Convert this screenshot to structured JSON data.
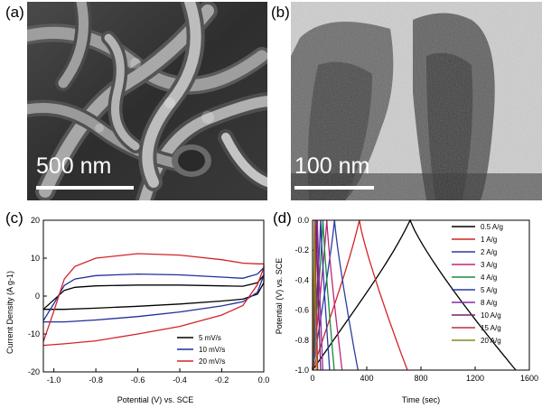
{
  "panels": {
    "a": {
      "label": "(a)",
      "scale_text": "500 nm"
    },
    "b": {
      "label": "(b)",
      "scale_text": "100 nm"
    },
    "c": {
      "label": "(c)"
    },
    "d": {
      "label": "(d)"
    }
  },
  "chart_data": [
    {
      "type": "line",
      "panel": "(c)",
      "title": "",
      "xlabel": "Potential (V) vs. SCE",
      "ylabel": "Current Density (A g-1)",
      "xlim": [
        -1.05,
        0.0
      ],
      "ylim": [
        -20,
        20
      ],
      "x_ticks": [
        "-1.0",
        "-0.8",
        "-0.6",
        "-0.4",
        "-0.2",
        "0.0"
      ],
      "x_tick_values": [
        -1.0,
        -0.8,
        -0.6,
        -0.4,
        -0.2,
        0.0
      ],
      "y_ticks": [
        "-20",
        "-10",
        "0",
        "10",
        "20"
      ],
      "y_tick_values": [
        -20,
        -10,
        0,
        10,
        20
      ],
      "legend_position": "bottom-right",
      "series": [
        {
          "name": "5 mV/s",
          "color": "#000000",
          "upper": [
            [
              -1.05,
              -3.5
            ],
            [
              -1.0,
              -1.0
            ],
            [
              -0.95,
              1.5
            ],
            [
              -0.9,
              2.3
            ],
            [
              -0.8,
              2.7
            ],
            [
              -0.6,
              2.9
            ],
            [
              -0.4,
              2.9
            ],
            [
              -0.2,
              2.7
            ],
            [
              -0.1,
              2.6
            ],
            [
              -0.03,
              3.5
            ],
            [
              0.0,
              5.5
            ]
          ],
          "lower": [
            [
              0.0,
              3.5
            ],
            [
              -0.03,
              0.5
            ],
            [
              -0.1,
              -0.8
            ],
            [
              -0.2,
              -1.3
            ],
            [
              -0.4,
              -2.1
            ],
            [
              -0.6,
              -2.7
            ],
            [
              -0.8,
              -3.2
            ],
            [
              -0.95,
              -3.5
            ],
            [
              -1.05,
              -3.5
            ]
          ]
        },
        {
          "name": "10 mV/s",
          "color": "#1f2f9a",
          "upper": [
            [
              -1.05,
              -6.5
            ],
            [
              -1.0,
              -2.0
            ],
            [
              -0.95,
              2.8
            ],
            [
              -0.9,
              4.5
            ],
            [
              -0.8,
              5.4
            ],
            [
              -0.6,
              5.8
            ],
            [
              -0.4,
              5.6
            ],
            [
              -0.2,
              5.0
            ],
            [
              -0.1,
              4.7
            ],
            [
              -0.03,
              5.8
            ],
            [
              0.0,
              7.5
            ]
          ],
          "lower": [
            [
              0.0,
              5.5
            ],
            [
              -0.03,
              1.0
            ],
            [
              -0.1,
              -1.5
            ],
            [
              -0.2,
              -2.6
            ],
            [
              -0.4,
              -4.2
            ],
            [
              -0.6,
              -5.4
            ],
            [
              -0.8,
              -6.3
            ],
            [
              -0.95,
              -6.8
            ],
            [
              -1.05,
              -6.8
            ]
          ]
        },
        {
          "name": "20 mV/s",
          "color": "#d2232a",
          "upper": [
            [
              -1.05,
              -12.0
            ],
            [
              -1.0,
              -4.0
            ],
            [
              -0.95,
              4.5
            ],
            [
              -0.9,
              7.8
            ],
            [
              -0.8,
              10.0
            ],
            [
              -0.6,
              11.2
            ],
            [
              -0.4,
              10.8
            ],
            [
              -0.2,
              9.6
            ],
            [
              -0.1,
              8.7
            ],
            [
              -0.03,
              8.5
            ],
            [
              0.0,
              8.5
            ]
          ],
          "lower": [
            [
              0.0,
              7.5
            ],
            [
              -0.03,
              3.0
            ],
            [
              -0.1,
              -2.5
            ],
            [
              -0.2,
              -5.0
            ],
            [
              -0.4,
              -8.0
            ],
            [
              -0.6,
              -10.0
            ],
            [
              -0.8,
              -11.8
            ],
            [
              -0.95,
              -12.6
            ],
            [
              -1.05,
              -13.0
            ]
          ]
        }
      ]
    },
    {
      "type": "line",
      "panel": "(d)",
      "title": "",
      "xlabel": "Time (sec)",
      "ylabel": "Potential (V) vs. SCE",
      "xlim": [
        0,
        1600
      ],
      "ylim": [
        -1.0,
        0.0
      ],
      "x_ticks": [
        "0",
        "400",
        "800",
        "1200",
        "1600"
      ],
      "x_tick_values": [
        0,
        400,
        800,
        1200,
        1600
      ],
      "y_ticks": [
        "-1.0",
        "-0.8",
        "-0.6",
        "-0.4",
        "-0.2",
        "0.0"
      ],
      "y_tick_values": [
        -1.0,
        -0.8,
        -0.6,
        -0.4,
        -0.2,
        0.0
      ],
      "legend_position": "top-right",
      "series": [
        {
          "name": "0.5 A/g",
          "color": "#000000",
          "charge_end": 720,
          "discharge_end": 1500
        },
        {
          "name": "1 A/g",
          "color": "#d2232a",
          "charge_end": 345,
          "discharge_end": 700
        },
        {
          "name": "2 A/g",
          "color": "#2b3f9e",
          "charge_end": 162,
          "discharge_end": 335
        },
        {
          "name": "3 A/g",
          "color": "#c0247a",
          "charge_end": 105,
          "discharge_end": 218
        },
        {
          "name": "4 A/g",
          "color": "#1a8a3a",
          "charge_end": 77,
          "discharge_end": 160
        },
        {
          "name": "5 A/g",
          "color": "#2a3aa8",
          "charge_end": 60,
          "discharge_end": 126
        },
        {
          "name": "8 A/g",
          "color": "#8a2ba0",
          "charge_end": 36,
          "discharge_end": 76
        },
        {
          "name": "10 A/g",
          "color": "#7a1e6a",
          "charge_end": 28,
          "discharge_end": 60
        },
        {
          "name": "15 A/g",
          "color": "#b83040",
          "charge_end": 18,
          "discharge_end": 38
        },
        {
          "name": "20 A/g",
          "color": "#8a8a20",
          "charge_end": 13,
          "discharge_end": 28
        }
      ]
    }
  ]
}
